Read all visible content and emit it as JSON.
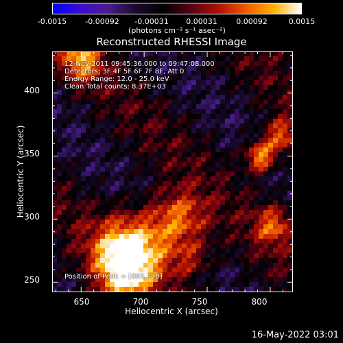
{
  "colorbar": {
    "ticks": [
      "-0.0015",
      "-0.00092",
      "-0.00031",
      "0.00031",
      "0.00092",
      "0.0015"
    ],
    "units": "(photons cm⁻² s⁻¹ asec⁻²)",
    "stops": [
      "#0000ff",
      "#3b0ccf",
      "#4a1c8f",
      "#1a0a30",
      "#000000",
      "#5a0012",
      "#b01000",
      "#f05a00",
      "#ffb000",
      "#ffffff"
    ]
  },
  "title": "Reconstructed RHESSI Image",
  "info": {
    "time": "12-Nov-2011 09:45:36.000 to 09:47:08.000",
    "detectors": "Detectors: 3F 4F 5F 6F 7F 8F, Att 0",
    "energy": "Energy Range: 12.0 - 25.0 keV",
    "clean": "Clean     Total counts: 8.37E+03",
    "peak": "Position of Peak = [693,278]"
  },
  "axes": {
    "xlabel": "Heliocentric X (arcsec)",
    "ylabel": "Heliocentric Y (arcsec)",
    "xticks": [
      "650",
      "700",
      "750",
      "800"
    ],
    "yticks": [
      "250",
      "300",
      "350",
      "400"
    ]
  },
  "footer": "16-May-2022 03:01",
  "chart_data": {
    "type": "heatmap",
    "title": "Reconstructed RHESSI Image",
    "xlabel": "Heliocentric X (arcsec)",
    "ylabel": "Heliocentric Y (arcsec)",
    "xlim": [
      627,
      818
    ],
    "ylim": [
      242,
      433
    ],
    "zlim": [
      -0.0015,
      0.0015
    ],
    "colorbar_label": "(photons cm⁻² s⁻¹ asec⁻²)",
    "peak": [
      693,
      278
    ]
  }
}
